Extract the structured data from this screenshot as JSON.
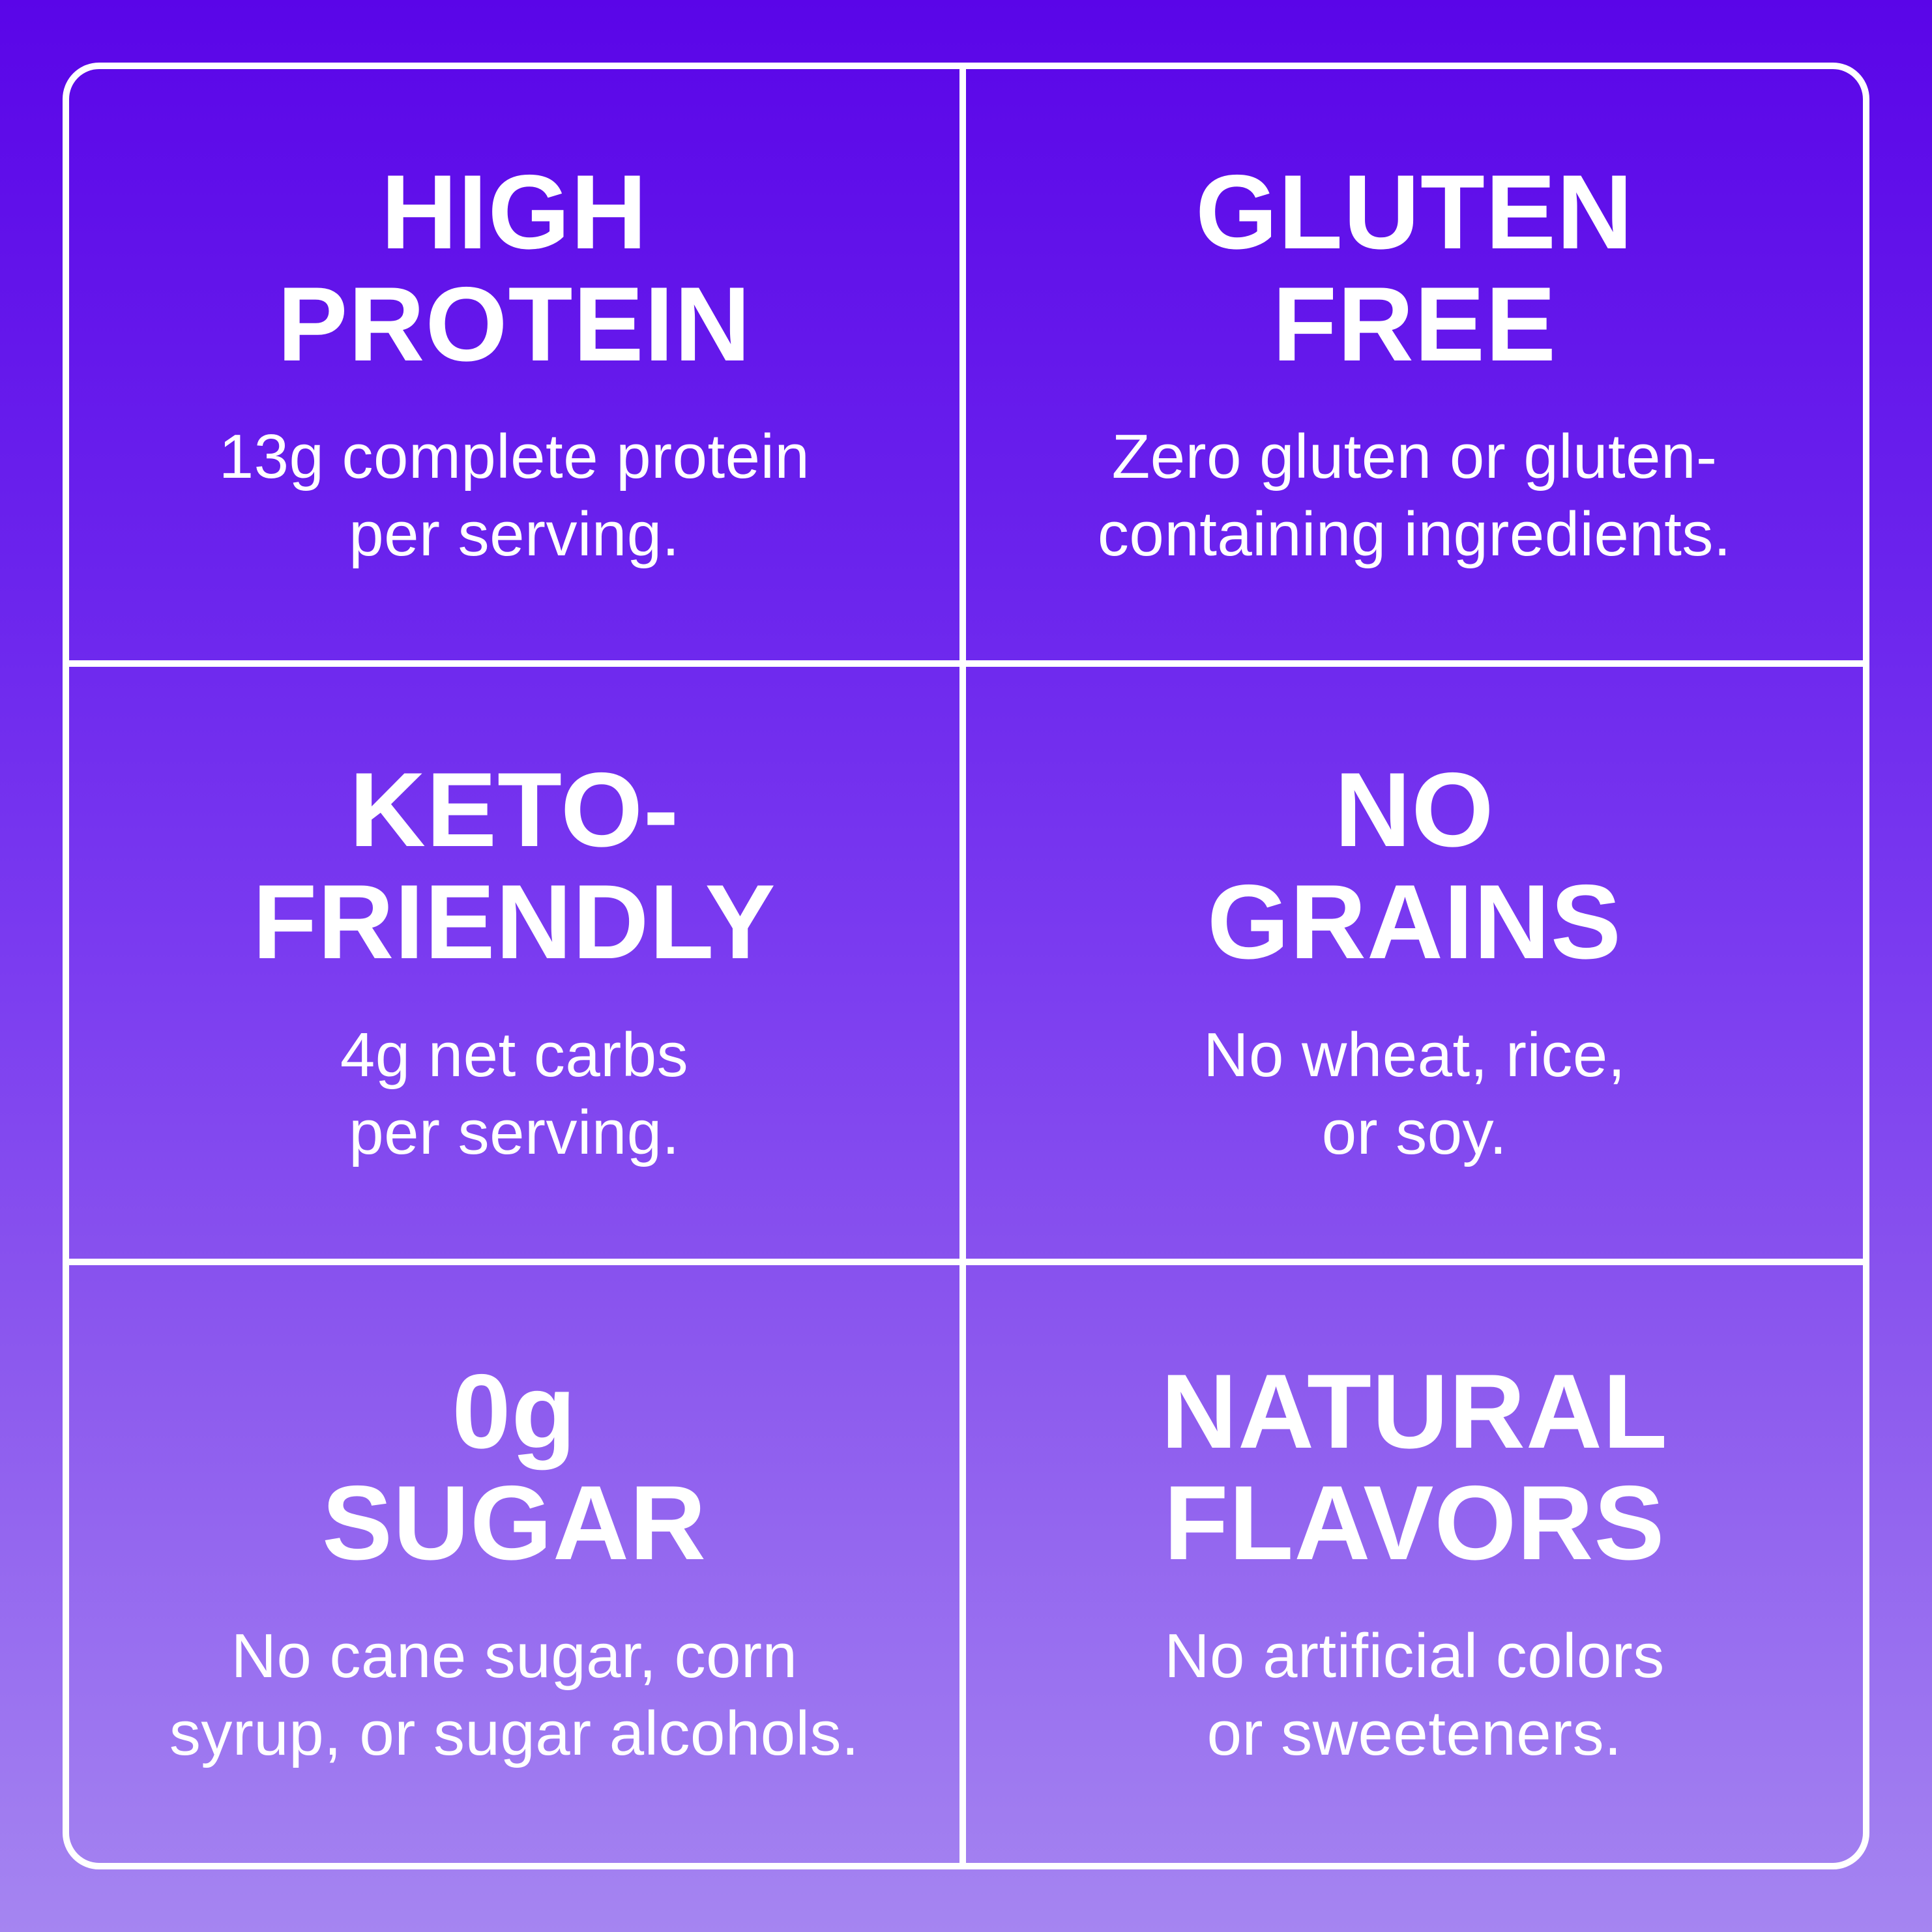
{
  "theme": {
    "gradient_top": "#5a05e8",
    "gradient_mid": "#7b3cf0",
    "gradient_bottom": "#a585f1",
    "grid_line_color": "#ffffff",
    "text_color": "#ffffff"
  },
  "cells": [
    {
      "name": "high-protein",
      "title_lines": [
        "HIGH",
        "PROTEIN"
      ],
      "subtitle_lines": [
        "13g complete protein",
        "per serving."
      ]
    },
    {
      "name": "gluten-free",
      "title_lines": [
        "GLUTEN",
        "FREE"
      ],
      "subtitle_lines": [
        "Zero gluten or gluten-",
        "containing ingredients."
      ]
    },
    {
      "name": "keto-friendly",
      "title_lines": [
        "KETO-",
        "FRIENDLY"
      ],
      "subtitle_lines": [
        "4g net carbs",
        "per serving."
      ]
    },
    {
      "name": "no-grains",
      "title_lines": [
        "NO",
        "GRAINS"
      ],
      "subtitle_lines": [
        "No wheat, rice,",
        "or soy."
      ]
    },
    {
      "name": "0g-sugar",
      "title_lines": [
        "0g",
        "SUGAR"
      ],
      "subtitle_lines": [
        "No cane sugar, corn",
        "syrup, or sugar alcohols."
      ]
    },
    {
      "name": "natural-flavors",
      "title_lines": [
        "NATURAL",
        "FLAVORS"
      ],
      "subtitle_lines": [
        "No artificial colors",
        "or sweeteners."
      ]
    }
  ]
}
